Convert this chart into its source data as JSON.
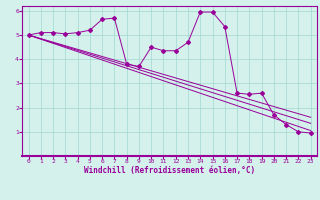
{
  "background_color": "#d4f1ec",
  "line_color": "#990099",
  "grid_color": "#a0d8d0",
  "xlabel": "Windchill (Refroidissement éolien,°C)",
  "xlim": [
    -0.5,
    23.5
  ],
  "ylim": [
    0,
    6.2
  ],
  "xticks": [
    0,
    1,
    2,
    3,
    4,
    5,
    6,
    7,
    8,
    9,
    10,
    11,
    12,
    13,
    14,
    15,
    16,
    17,
    18,
    19,
    20,
    21,
    22,
    23
  ],
  "yticks": [
    1,
    2,
    3,
    4,
    5,
    6
  ],
  "curve1_x": [
    0,
    1,
    2,
    3,
    4,
    5,
    6,
    7,
    8,
    9,
    10,
    11,
    12,
    13,
    14,
    15,
    16,
    17,
    18,
    19,
    20,
    21,
    22,
    23
  ],
  "curve1_y": [
    5.0,
    5.1,
    5.1,
    5.05,
    5.1,
    5.2,
    5.65,
    5.7,
    3.8,
    3.7,
    4.5,
    4.35,
    4.35,
    4.7,
    5.95,
    5.95,
    5.35,
    2.6,
    2.55,
    2.6,
    1.7,
    1.3,
    1.0,
    0.95
  ],
  "line2_x": [
    0,
    23
  ],
  "line2_y": [
    5.0,
    1.05
  ],
  "line3_x": [
    0,
    23
  ],
  "line3_y": [
    5.0,
    1.35
  ],
  "line4_x": [
    0,
    23
  ],
  "line4_y": [
    5.0,
    1.6
  ],
  "marker": "D",
  "markersize": 2.0,
  "linewidth": 0.7,
  "tick_fontsize": 4.5,
  "xlabel_fontsize": 5.5
}
